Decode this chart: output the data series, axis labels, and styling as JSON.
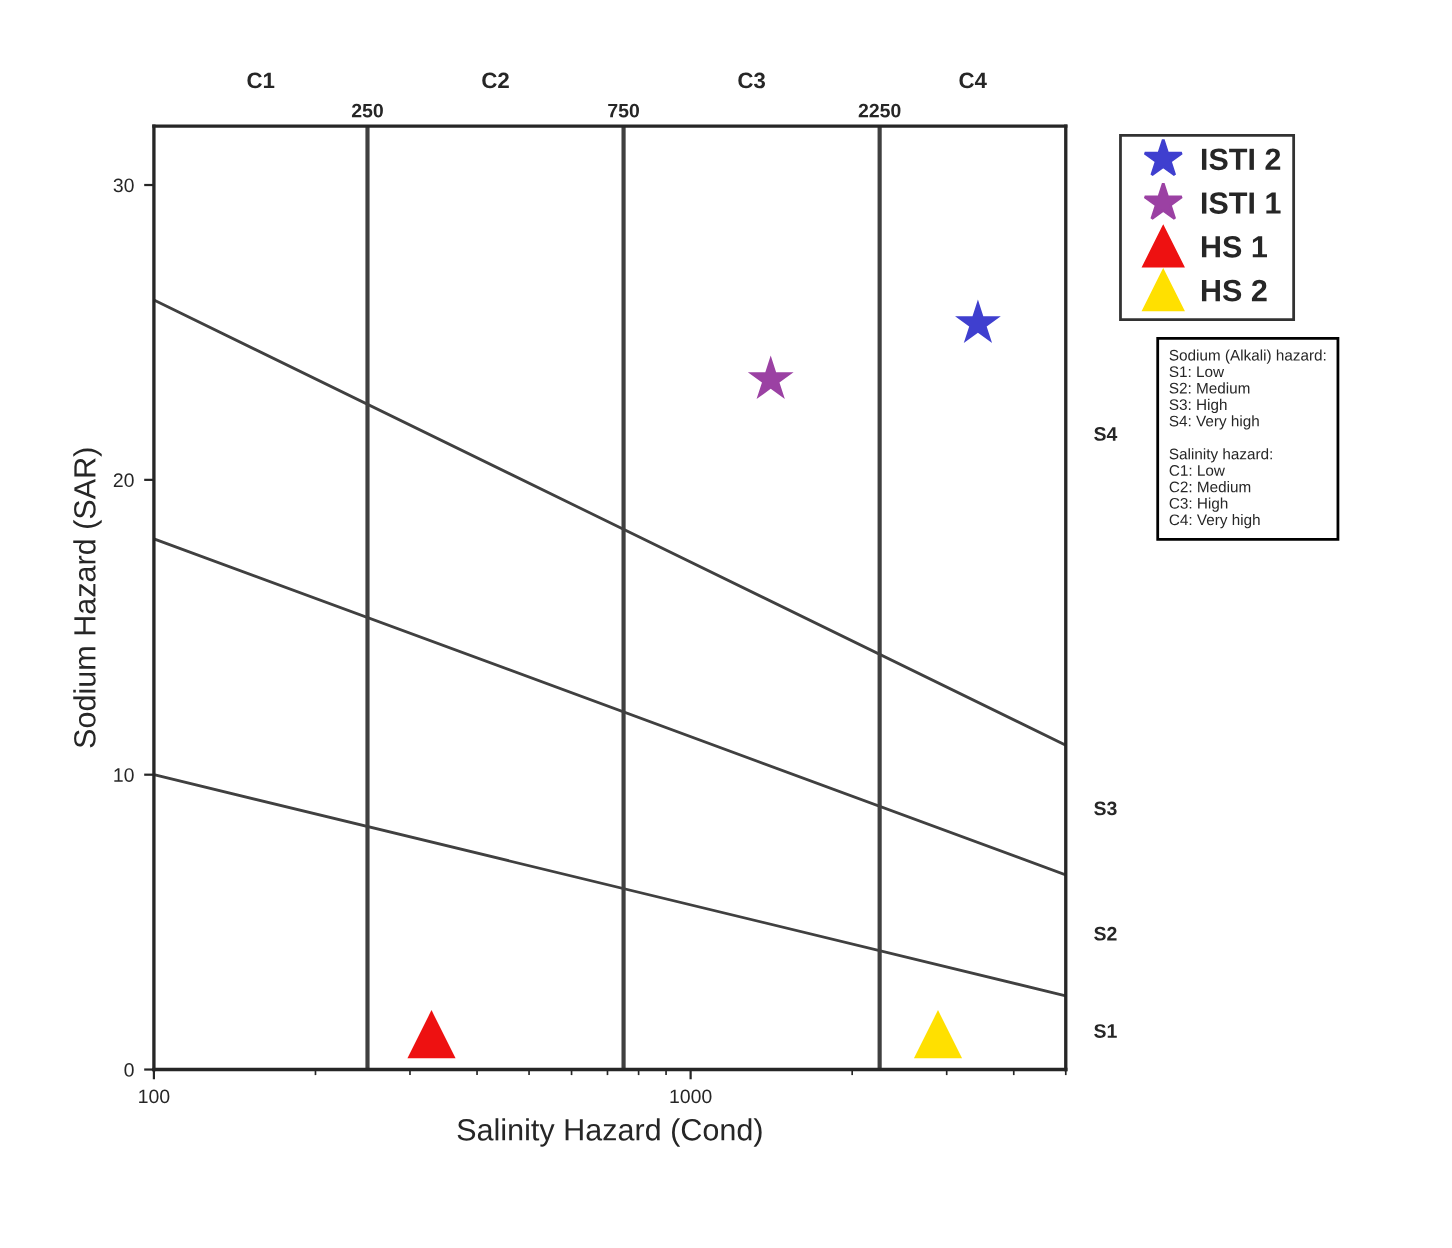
{
  "chart_data": {
    "type": "scatter",
    "xlabel": "Salinity Hazard (Cond)",
    "ylabel": "Sodium Hazard (SAR)",
    "log": "x",
    "xlim": [
      100,
      5000
    ],
    "xticks": [
      100,
      1000
    ],
    "ylim": [
      0,
      32
    ],
    "yticks": [
      0,
      10,
      20,
      30
    ],
    "grid": false,
    "legend": "top right",
    "series": [
      {
        "type": "line",
        "color": "#404040",
        "x": [
          100,
          5000
        ],
        "values": [
          10,
          2.5
        ],
        "marker": "none",
        "line_style": "solid"
      },
      {
        "type": "line",
        "color": "#404040",
        "x": [
          100,
          5000
        ],
        "values": [
          18,
          6.6
        ],
        "marker": "none",
        "line_style": "solid"
      },
      {
        "type": "line",
        "color": "#404040",
        "x": [
          100,
          5000
        ],
        "values": [
          26.1,
          11.0
        ],
        "marker": "none",
        "line_style": "solid"
      },
      {
        "name": "ISTI 2",
        "color": "#3f3fcf",
        "x": [
          3430
        ],
        "values": [
          25.3
        ],
        "marker": "star"
      },
      {
        "name": "ISTI 1",
        "color": "#9b41a3",
        "x": [
          1410
        ],
        "values": [
          23.4
        ],
        "marker": "star"
      },
      {
        "name": "HS 1",
        "color": "#ee1111",
        "x": [
          329
        ],
        "values": [
          1.2
        ],
        "marker": "triangle"
      },
      {
        "name": "HS 2",
        "color": "#ffe000",
        "x": [
          2890
        ],
        "values": [
          1.2
        ],
        "marker": "triangle"
      }
    ],
    "ref_lines": [
      {
        "axis": "x",
        "value": 250,
        "label": "250",
        "color": "#404040"
      },
      {
        "axis": "x",
        "value": 750,
        "label": "750",
        "color": "#404040"
      },
      {
        "axis": "x",
        "value": 2250,
        "label": "2250",
        "color": "#404040"
      }
    ],
    "annotations": [
      "C1",
      "C2",
      "C3",
      "C4",
      "S1",
      "S2",
      "S3",
      "S4",
      "Sodium (Alkali) hazard:\nS1: Low\nS2: Medium\nS3: High\nS4: Very high\n\nSalinity hazard:\nC1: Low\nC2: Medium\nC3: High\nC4: Very high"
    ]
  }
}
